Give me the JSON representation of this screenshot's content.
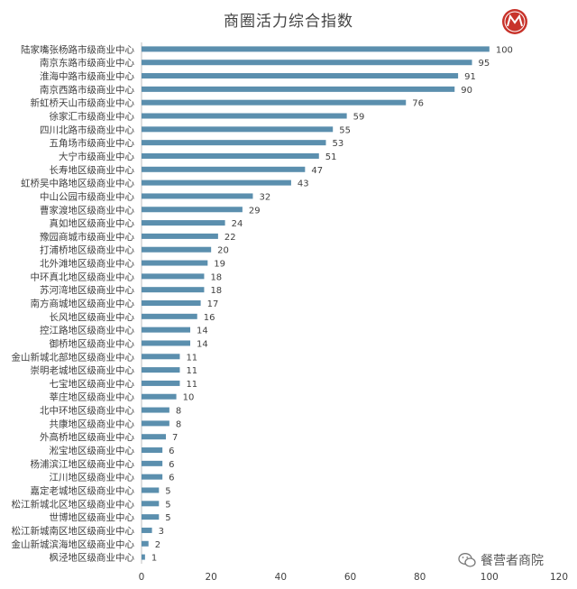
{
  "chart_data": {
    "type": "bar",
    "orientation": "horizontal",
    "title": "商圈活力综合指数",
    "categories": [
      "陆家嘴张杨路市级商业中心",
      "南京东路市级商业中心",
      "淮海中路市级商业中心",
      "南京西路市级商业中心",
      "新虹桥天山市级商业中心",
      "徐家汇市级商业中心",
      "四川北路市级商业中心",
      "五角场市级商业中心",
      "大宁市级商业中心",
      "长寿地区级商业中心",
      "虹桥吴中路地区级商业中心",
      "中山公园市级商业中心",
      "曹家渡地区级商业中心",
      "真如地区级商业中心",
      "豫园商城市级商业中心",
      "打浦桥地区级商业中心",
      "北外滩地区级商业中心",
      "中环真北地区级商业中心",
      "苏河湾地区级商业中心",
      "南方商城地区级商业中心",
      "长风地区级商业中心",
      "控江路地区级商业中心",
      "御桥地区级商业中心",
      "金山新城北部地区级商业中心",
      "崇明老城地区级商业中心",
      "七宝地区级商业中心",
      "莘庄地区级商业中心",
      "北中环地区级商业中心",
      "共康地区级商业中心",
      "外高桥地区级商业中心",
      "淞宝地区级商业中心",
      "杨浦滨江地区级商业中心",
      "江川地区级商业中心",
      "嘉定老城地区级商业中心",
      "松江新城北区地区级商业中心",
      "世博地区级商业中心",
      "松江新城南区地区级商业中心",
      "金山新城滨海地区级商业中心",
      "枫泾地区级商业中心"
    ],
    "values": [
      100,
      95,
      91,
      90,
      76,
      59,
      55,
      53,
      51,
      47,
      43,
      32,
      29,
      24,
      22,
      20,
      19,
      18,
      18,
      17,
      16,
      14,
      14,
      11,
      11,
      11,
      10,
      8,
      8,
      7,
      6,
      6,
      6,
      5,
      5,
      5,
      3,
      2,
      1
    ],
    "xlim": [
      0,
      120
    ],
    "xticks": [
      0,
      20,
      40,
      60,
      80,
      100,
      120
    ],
    "bar_color": "#5b8fae",
    "grid": false,
    "xlabel": "",
    "ylabel": ""
  },
  "watermark": {
    "text": "餐营者商院"
  },
  "colors": {
    "logo_red": "#c8332b",
    "axis": "#bfbfbf",
    "label": "#404040"
  }
}
